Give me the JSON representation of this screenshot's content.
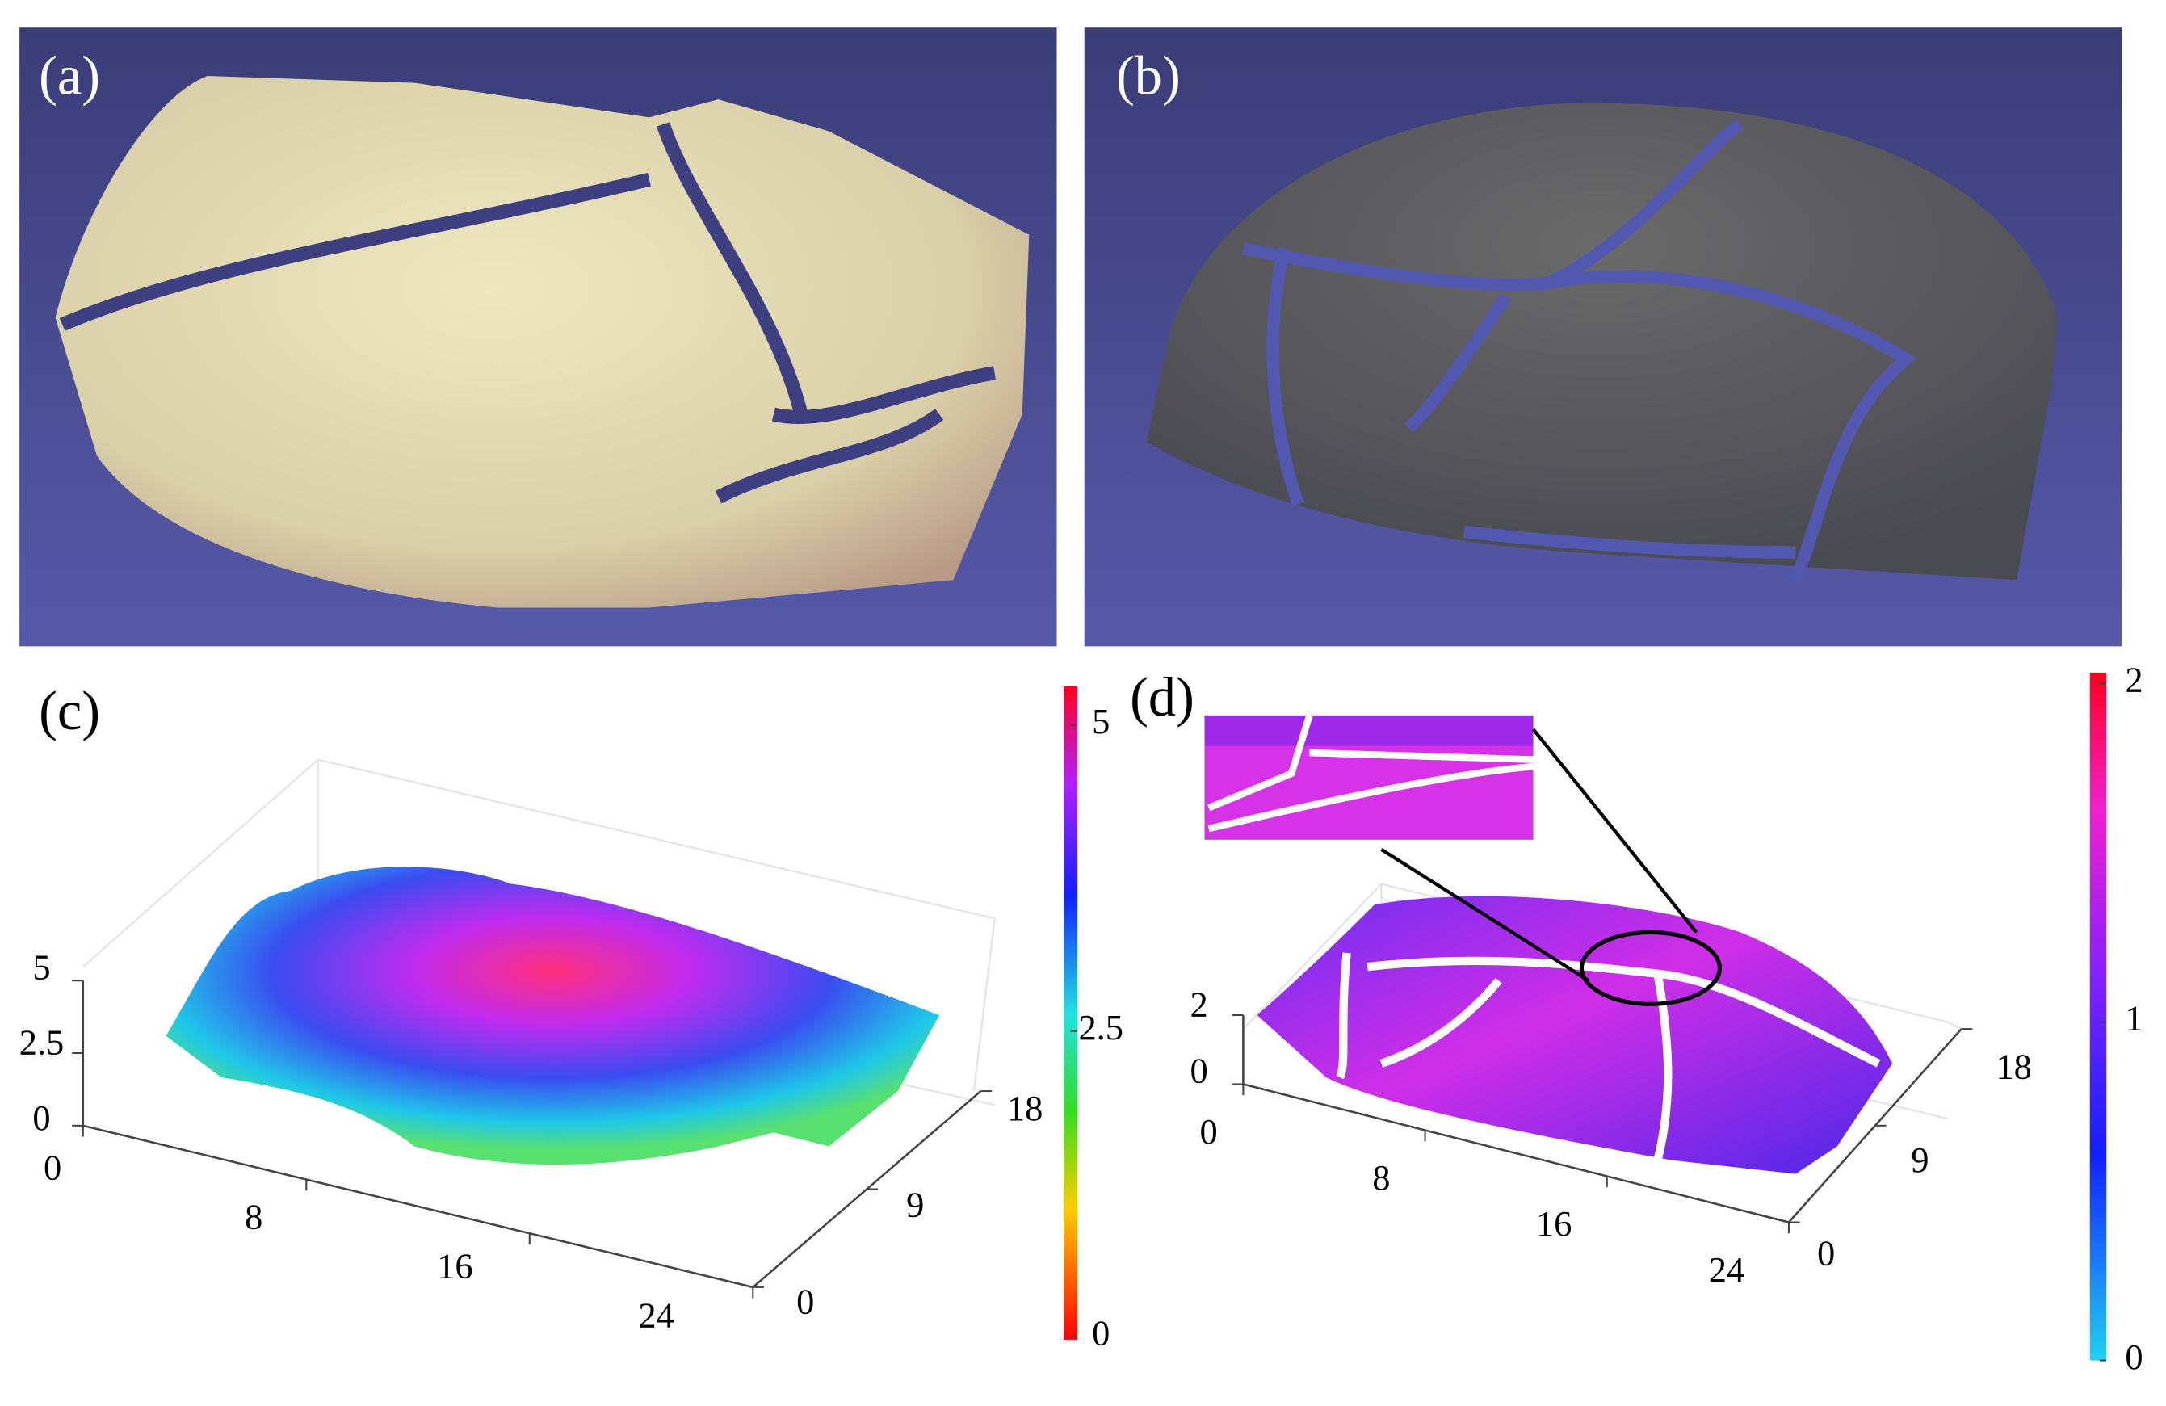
{
  "panels": [
    {
      "label": "(a)"
    },
    {
      "label": "(b)"
    },
    {
      "label": "(c)",
      "colorbar_ticks": [
        0,
        2.5,
        5
      ],
      "z_ticks": [
        0,
        2.5,
        5
      ],
      "x_ticks": [
        0,
        8,
        16,
        24
      ],
      "y_ticks": [
        0,
        9,
        18
      ]
    },
    {
      "label": "(d)",
      "colorbar_ticks": [
        0,
        1,
        2
      ],
      "z_ticks": [
        0,
        2
      ],
      "x_ticks": [
        0,
        8,
        16,
        24
      ],
      "y_ticks": [
        0,
        9,
        18
      ]
    }
  ]
}
